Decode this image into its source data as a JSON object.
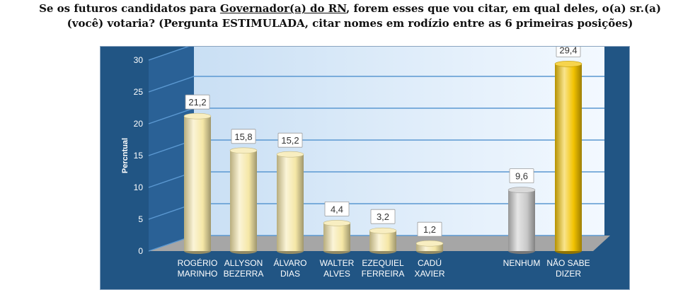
{
  "title": {
    "part1": "Se os futuros candidatos para ",
    "underlined": "Governador(a) do RN",
    "part2": ", forem esses que vou citar, em qual deles, o(a) sr.(a)",
    "line2": "(você) votaria? (Pergunta ESTIMULADA, citar nomes em rodízio entre as 6 primeiras posições)"
  },
  "colors": {
    "panel_bg": "#215584",
    "wall": "#dcecfb",
    "floor": "#a6a6a6",
    "bar_candidate": "#f5e7a6",
    "bar_nenhum": "#c8c8c8",
    "bar_nao_sabe": "#f2c200"
  },
  "chart_data": {
    "type": "bar",
    "ylabel": "Percntual",
    "ylim": [
      0,
      30
    ],
    "yticks": [
      "0",
      "5",
      "10",
      "15",
      "20",
      "25",
      "30"
    ],
    "grid": true,
    "categories": [
      [
        "ROGÉRIO",
        "MARINHO"
      ],
      [
        "ALLYSON",
        "BEZERRA"
      ],
      [
        "ÁLVARO",
        "DIAS"
      ],
      [
        "WALTER",
        "ALVES"
      ],
      [
        "EZEQUIEL",
        "FERREIRA"
      ],
      [
        "CADÚ",
        "XAVIER"
      ],
      [
        "NENHUM",
        ""
      ],
      [
        "NÃO SABE",
        "DIZER"
      ]
    ],
    "values": [
      21.2,
      15.8,
      15.2,
      4.4,
      3.2,
      1.2,
      9.6,
      29.4
    ],
    "data_labels": [
      "21,2",
      "15,8",
      "15,2",
      "4,4",
      "3,2",
      "1,2",
      "9,6",
      "29,4"
    ],
    "bar_colors": [
      "bar_candidate",
      "bar_candidate",
      "bar_candidate",
      "bar_candidate",
      "bar_candidate",
      "bar_candidate",
      "bar_nenhum",
      "bar_nao_sabe"
    ]
  }
}
